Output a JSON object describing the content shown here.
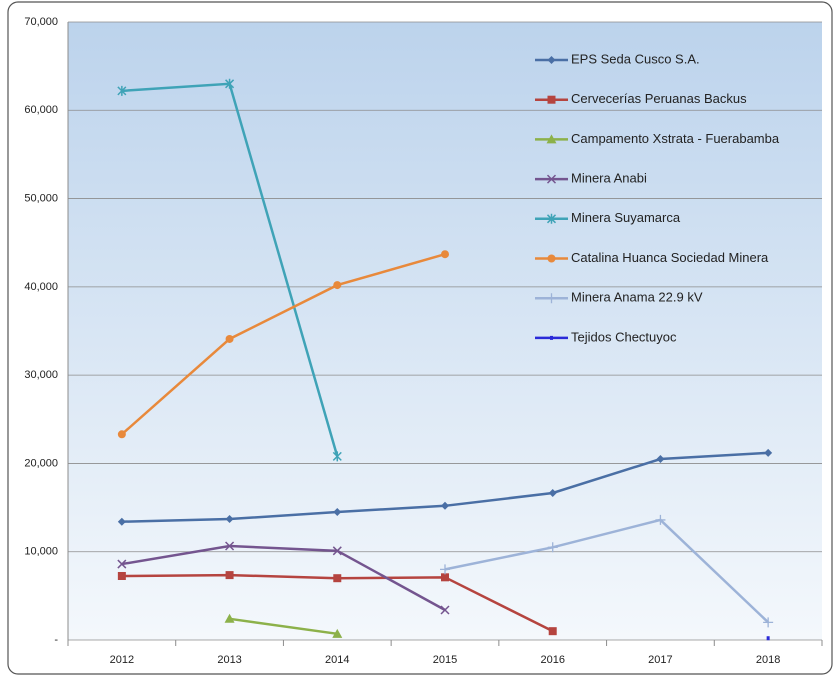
{
  "chart_data": {
    "type": "line",
    "categories": [
      "2012",
      "2013",
      "2014",
      "2015",
      "2016",
      "2017",
      "2018"
    ],
    "series": [
      {
        "name": "EPS Seda Cusco S.A.",
        "color": "#4a6fa5",
        "marker": "diamond",
        "values": [
          13400,
          13700,
          14500,
          15200,
          16650,
          20500,
          21200
        ]
      },
      {
        "name": "Cervecerías Peruanas Backus",
        "color": "#b5443f",
        "marker": "square",
        "values": [
          7250,
          7350,
          7000,
          7100,
          1000,
          null,
          null
        ]
      },
      {
        "name": "Campamento Xstrata - Fuerabamba",
        "color": "#8cb14a",
        "marker": "triangle",
        "values": [
          null,
          2400,
          700,
          null,
          null,
          null,
          null
        ]
      },
      {
        "name": "Minera Anabi",
        "color": "#74558f",
        "marker": "x",
        "values": [
          8600,
          10650,
          10100,
          3400,
          null,
          null,
          null
        ]
      },
      {
        "name": "Minera Suyamarca",
        "color": "#3fa3b7",
        "marker": "star",
        "values": [
          62200,
          63000,
          20800,
          null,
          null,
          null,
          null
        ]
      },
      {
        "name": "Catalina Huanca Sociedad Minera",
        "color": "#e8893b",
        "marker": "circle",
        "values": [
          23300,
          34100,
          40200,
          43700,
          null,
          null,
          null
        ]
      },
      {
        "name": "Minera Anama 22.9 kV",
        "color": "#9db3d8",
        "marker": "plus",
        "values": [
          null,
          null,
          null,
          8000,
          10500,
          13600,
          2000
        ]
      },
      {
        "name": "Tejidos Chectuyoc",
        "color": "#2a2ad8",
        "marker": "dash",
        "values": [
          null,
          null,
          null,
          null,
          null,
          null,
          200
        ]
      }
    ],
    "ylim": [
      0,
      70000
    ],
    "yticks": [
      {
        "value": 0,
        "label": "-"
      },
      {
        "value": 10000,
        "label": "10,000"
      },
      {
        "value": 20000,
        "label": "20,000"
      },
      {
        "value": 30000,
        "label": "30,000"
      },
      {
        "value": 40000,
        "label": "40,000"
      },
      {
        "value": 50000,
        "label": "50,000"
      },
      {
        "value": 60000,
        "label": "60,000"
      },
      {
        "value": 70000,
        "label": "70,000"
      }
    ],
    "grid": true,
    "legend": "right"
  }
}
